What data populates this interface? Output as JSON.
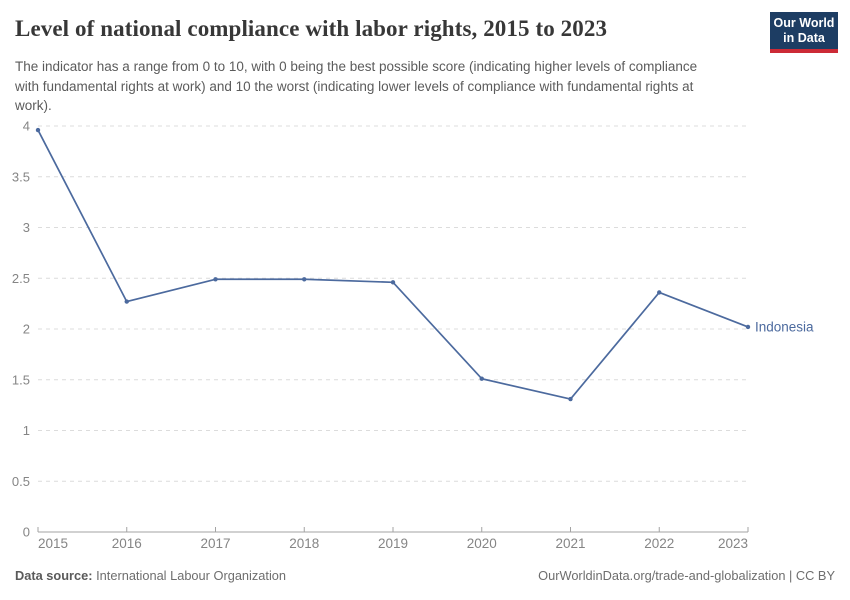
{
  "header": {
    "title": "Level of national compliance with labor rights, 2015 to 2023",
    "subtitle": "The indicator has a range from 0 to 10, with 0 being the best possible score (indicating higher levels of compliance with fundamental rights at work) and 10 the worst (indicating lower levels of compliance with fundamental rights at work).",
    "logo": {
      "line1": "Our World",
      "line2": "in Data",
      "bg_color": "#1d3d63",
      "accent_color": "#cc2a36"
    }
  },
  "chart_data": {
    "type": "line",
    "title": "Level of national compliance with labor rights, 2015 to 2023",
    "x": [
      "2015",
      "2016",
      "2017",
      "2018",
      "2019",
      "2020",
      "2021",
      "2022",
      "2023"
    ],
    "series": [
      {
        "name": "Indonesia",
        "values": [
          3.96,
          2.27,
          2.49,
          2.49,
          2.46,
          1.51,
          1.31,
          2.36,
          2.02
        ],
        "color": "#4c6a9e"
      }
    ],
    "ylim": [
      0,
      4
    ],
    "yticks": [
      0,
      0.5,
      1,
      1.5,
      2,
      2.5,
      3,
      3.5,
      4
    ],
    "xlabel": "",
    "ylabel": "",
    "grid": "horizontal-dashed",
    "grid_color": "#dcdcdc",
    "axis_color": "#a3a3a3",
    "tick_label_color": "#858585",
    "legend_position": "end-of-line-label"
  },
  "footer": {
    "source_label": "Data source:",
    "source_value": "International Labour Organization",
    "right_note": "OurWorldinData.org/trade-and-globalization | CC BY"
  }
}
